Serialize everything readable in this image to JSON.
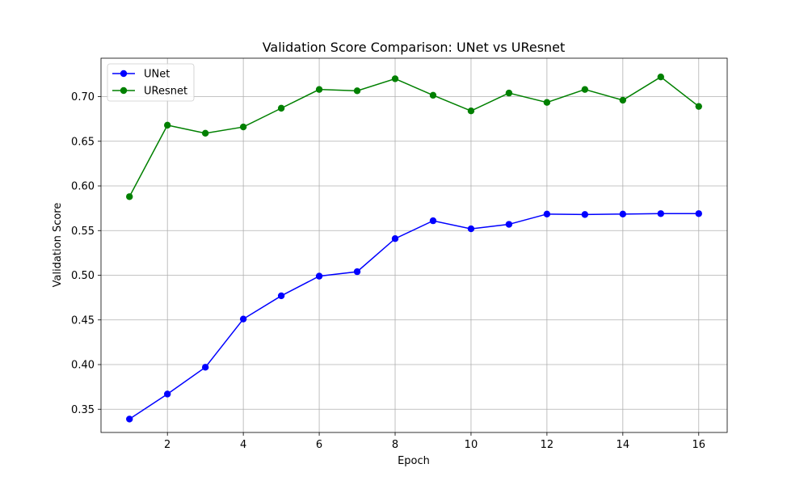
{
  "chart_data": {
    "type": "line",
    "title": "Validation Score Comparison: UNet vs UResnet",
    "xlabel": "Epoch",
    "ylabel": "Validation Score",
    "x": [
      1,
      2,
      3,
      4,
      5,
      6,
      7,
      8,
      9,
      10,
      11,
      12,
      13,
      14,
      15,
      16
    ],
    "xlim": [
      0.25,
      16.75
    ],
    "ylim": [
      0.324,
      0.743
    ],
    "xticks": [
      2,
      4,
      6,
      8,
      10,
      12,
      14,
      16
    ],
    "yticks": [
      0.35,
      0.4,
      0.45,
      0.5,
      0.55,
      0.6,
      0.65,
      0.7
    ],
    "ytick_labels": [
      "0.35",
      "0.40",
      "0.45",
      "0.50",
      "0.55",
      "0.60",
      "0.65",
      "0.70"
    ],
    "grid": true,
    "legend_position": "top-left",
    "series": [
      {
        "name": "UNet",
        "color": "#0000ff",
        "marker": "circle",
        "values": [
          0.339,
          0.367,
          0.397,
          0.451,
          0.477,
          0.499,
          0.504,
          0.541,
          0.561,
          0.552,
          0.557,
          0.5685,
          0.568,
          0.5685,
          0.569,
          0.569
        ]
      },
      {
        "name": "UResnet",
        "color": "#008000",
        "marker": "circle",
        "values": [
          0.588,
          0.668,
          0.659,
          0.666,
          0.687,
          0.708,
          0.7065,
          0.72,
          0.7015,
          0.684,
          0.704,
          0.6935,
          0.708,
          0.696,
          0.722,
          0.689
        ]
      }
    ]
  }
}
